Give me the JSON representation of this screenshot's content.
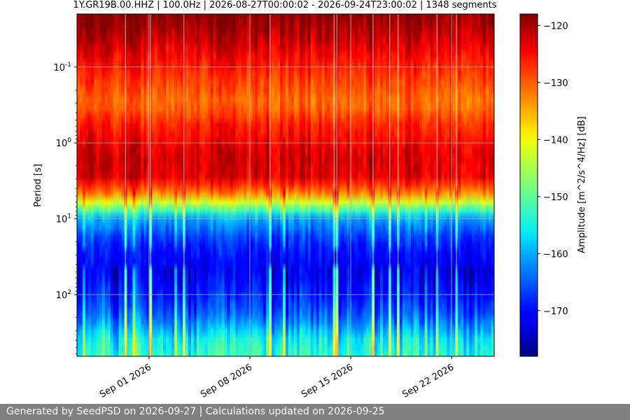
{
  "chart_data": {
    "type": "heatmap",
    "title": "1Y.GR19B.00.HHZ | 100.0Hz | 2026-08-27T00:00:02 - 2026-09-24T23:00:02 | 1348 segments",
    "xlabel": "",
    "ylabel": "Period [s]",
    "x_range": [
      "2026-08-27T00:00:02",
      "2026-09-24T23:00:02"
    ],
    "x_ticks": [
      {
        "date": "2026-09-01",
        "label": "Sep 01 2026"
      },
      {
        "date": "2026-09-08",
        "label": "Sep 08 2026"
      },
      {
        "date": "2026-09-15",
        "label": "Sep 15 2026"
      },
      {
        "date": "2026-09-22",
        "label": "Sep 22 2026"
      }
    ],
    "y_scale": "log",
    "y_inverted": true,
    "y_range": [
      0.02,
      650
    ],
    "y_ticks": [
      {
        "value": 0.1,
        "label": "10^-1"
      },
      {
        "value": 1,
        "label": "10^0"
      },
      {
        "value": 10,
        "label": "10^1"
      },
      {
        "value": 100,
        "label": "10^2"
      }
    ],
    "grid": true,
    "colormap": "jet",
    "colorbar": {
      "label": "Amplitude [m^2/s^4/Hz] [dB]",
      "range": [
        -178,
        -118
      ],
      "ticks": [
        -120,
        -130,
        -140,
        -150,
        -160,
        -170
      ]
    },
    "spectrum_profile": [
      {
        "period": 0.02,
        "db": -118
      },
      {
        "period": 0.04,
        "db": -121
      },
      {
        "period": 0.1,
        "db": -126
      },
      {
        "period": 0.3,
        "db": -131
      },
      {
        "period": 0.6,
        "db": -126
      },
      {
        "period": 1.5,
        "db": -122
      },
      {
        "period": 3,
        "db": -123
      },
      {
        "period": 5,
        "db": -134
      },
      {
        "period": 7,
        "db": -148
      },
      {
        "period": 10,
        "db": -160
      },
      {
        "period": 20,
        "db": -168
      },
      {
        "period": 50,
        "db": -172
      },
      {
        "period": 100,
        "db": -169
      },
      {
        "period": 200,
        "db": -164
      },
      {
        "period": 400,
        "db": -155
      },
      {
        "period": 650,
        "db": -153
      }
    ]
  },
  "footer": {
    "text": "Generated by SeedPSD on 2026-09-27 | Calculations updated on 2026-09-25"
  }
}
